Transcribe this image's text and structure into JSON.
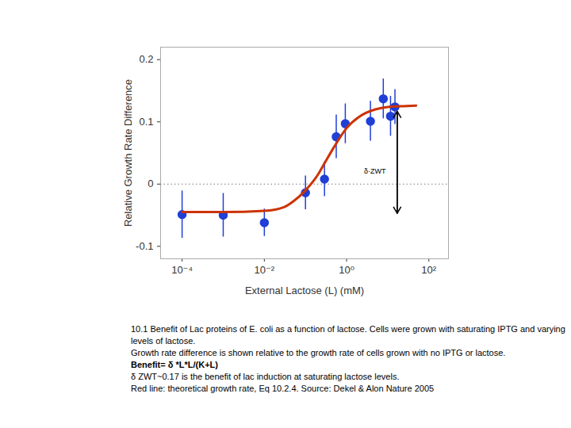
{
  "chart_data": {
    "type": "scatter",
    "x_label": "External Lactose (L) (mM)",
    "y_label": "Relative Growth Rate Difference",
    "log": "x",
    "grid": false,
    "xlim": [
      3e-05,
      300
    ],
    "ylim": [
      -0.12,
      0.22
    ],
    "xticks": [
      {
        "value": 0.0001,
        "label": "10⁻⁴"
      },
      {
        "value": 0.01,
        "label": "10⁻²"
      },
      {
        "value": 1,
        "label": "10⁰"
      },
      {
        "value": 100,
        "label": "10²"
      }
    ],
    "yticks": [
      -0.1,
      0,
      0.1,
      0.2
    ],
    "hlines": [
      {
        "y": 0,
        "line_style": "dotted"
      }
    ],
    "series": [
      {
        "type": "scatter",
        "color": "#1f3fd6",
        "marker": "circle",
        "x": [
          0.0001,
          0.001,
          0.01,
          0.1,
          0.29,
          0.56,
          0.93,
          3.8,
          7.8,
          11.7,
          15
        ],
        "values": [
          -0.049,
          -0.05,
          -0.062,
          -0.014,
          0.008,
          0.076,
          0.097,
          0.101,
          0.137,
          0.109,
          0.124
        ],
        "error": [
          0.038,
          0.035,
          0.022,
          0.027,
          0.028,
          0.035,
          0.032,
          0.032,
          0.032,
          0.032,
          0.028
        ]
      },
      {
        "type": "line",
        "color": "#cc3300",
        "line_style": "solid",
        "x": [
          0.0001,
          0.001,
          0.01,
          0.03,
          0.05,
          0.1,
          0.2,
          0.3,
          0.5,
          1,
          2,
          5,
          10,
          20,
          49
        ],
        "values": [
          -0.045,
          -0.045,
          -0.043,
          -0.037,
          -0.028,
          -0.01,
          0.015,
          0.035,
          0.06,
          0.09,
          0.108,
          0.12,
          0.124,
          0.125,
          0.126
        ]
      }
    ],
    "annotations": [
      {
        "text": "δ·ZWT",
        "x": 17,
        "y1": 0.117,
        "y2": -0.047
      }
    ],
    "caption": [
      "10.1 Benefit of Lac proteins of E. coli as a function of lactose. Cells were grown with saturating IPTG and varying levels of lactose.",
      "Growth rate difference is shown relative to the growth rate of cells grown with no IPTG or lactose.",
      "Benefit= δ *L*L/(K+L)",
      "δ ZWT~0.17   is the benefit of lac induction at saturating lactose levels.",
      "Red line: theoretical growth rate, Eq 10.2.4. Source: Dekel & Alon Nature 2005"
    ]
  }
}
